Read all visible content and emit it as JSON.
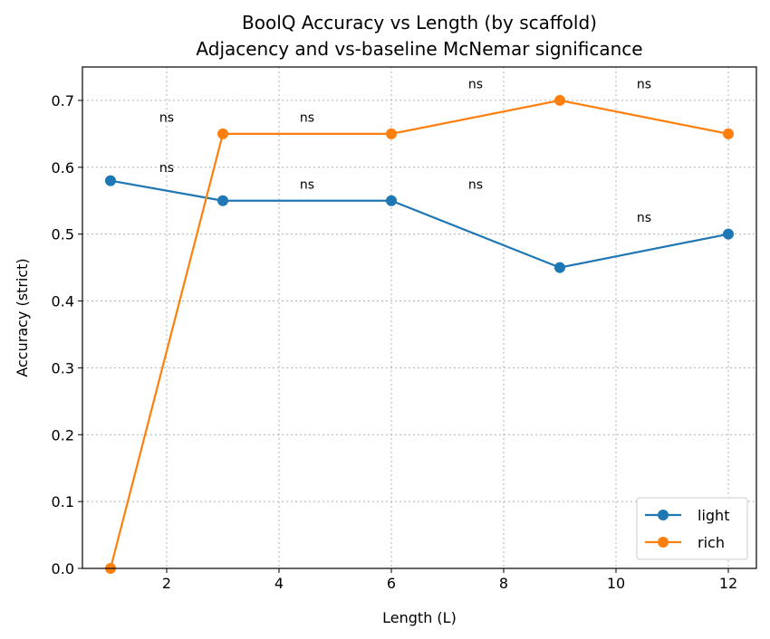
{
  "chart_data": {
    "type": "line",
    "title": "BoolQ Accuracy vs Length (by scaffold)",
    "subtitle": "Adjacency and vs-baseline McNemar significance",
    "xlabel": "Length (L)",
    "ylabel": "Accuracy (strict)",
    "xlim": [
      0.5,
      12.5
    ],
    "ylim": [
      0.0,
      0.75
    ],
    "xticks": [
      2,
      4,
      6,
      8,
      10,
      12
    ],
    "yticks": [
      0.0,
      0.1,
      0.2,
      0.3,
      0.4,
      0.5,
      0.6,
      0.7
    ],
    "grid": true,
    "legend_position": "lower-right",
    "series": [
      {
        "name": "light",
        "color": "#1f77b4",
        "x": [
          1,
          3,
          6,
          9,
          12
        ],
        "y": [
          0.58,
          0.55,
          0.55,
          0.45,
          0.5
        ]
      },
      {
        "name": "rich",
        "color": "#ff7f0e",
        "x": [
          1,
          3,
          6,
          9,
          12
        ],
        "y": [
          0.0,
          0.65,
          0.65,
          0.7,
          0.65
        ]
      }
    ],
    "annotations": [
      {
        "text": "ns",
        "x": 2.0,
        "y": 0.6
      },
      {
        "text": "ns",
        "x": 4.5,
        "y": 0.575
      },
      {
        "text": "ns",
        "x": 7.5,
        "y": 0.575
      },
      {
        "text": "ns",
        "x": 10.5,
        "y": 0.525
      },
      {
        "text": "ns",
        "x": 2.0,
        "y": 0.675
      },
      {
        "text": "ns",
        "x": 4.5,
        "y": 0.675
      },
      {
        "text": "ns",
        "x": 7.5,
        "y": 0.725
      },
      {
        "text": "ns",
        "x": 10.5,
        "y": 0.725
      }
    ]
  }
}
